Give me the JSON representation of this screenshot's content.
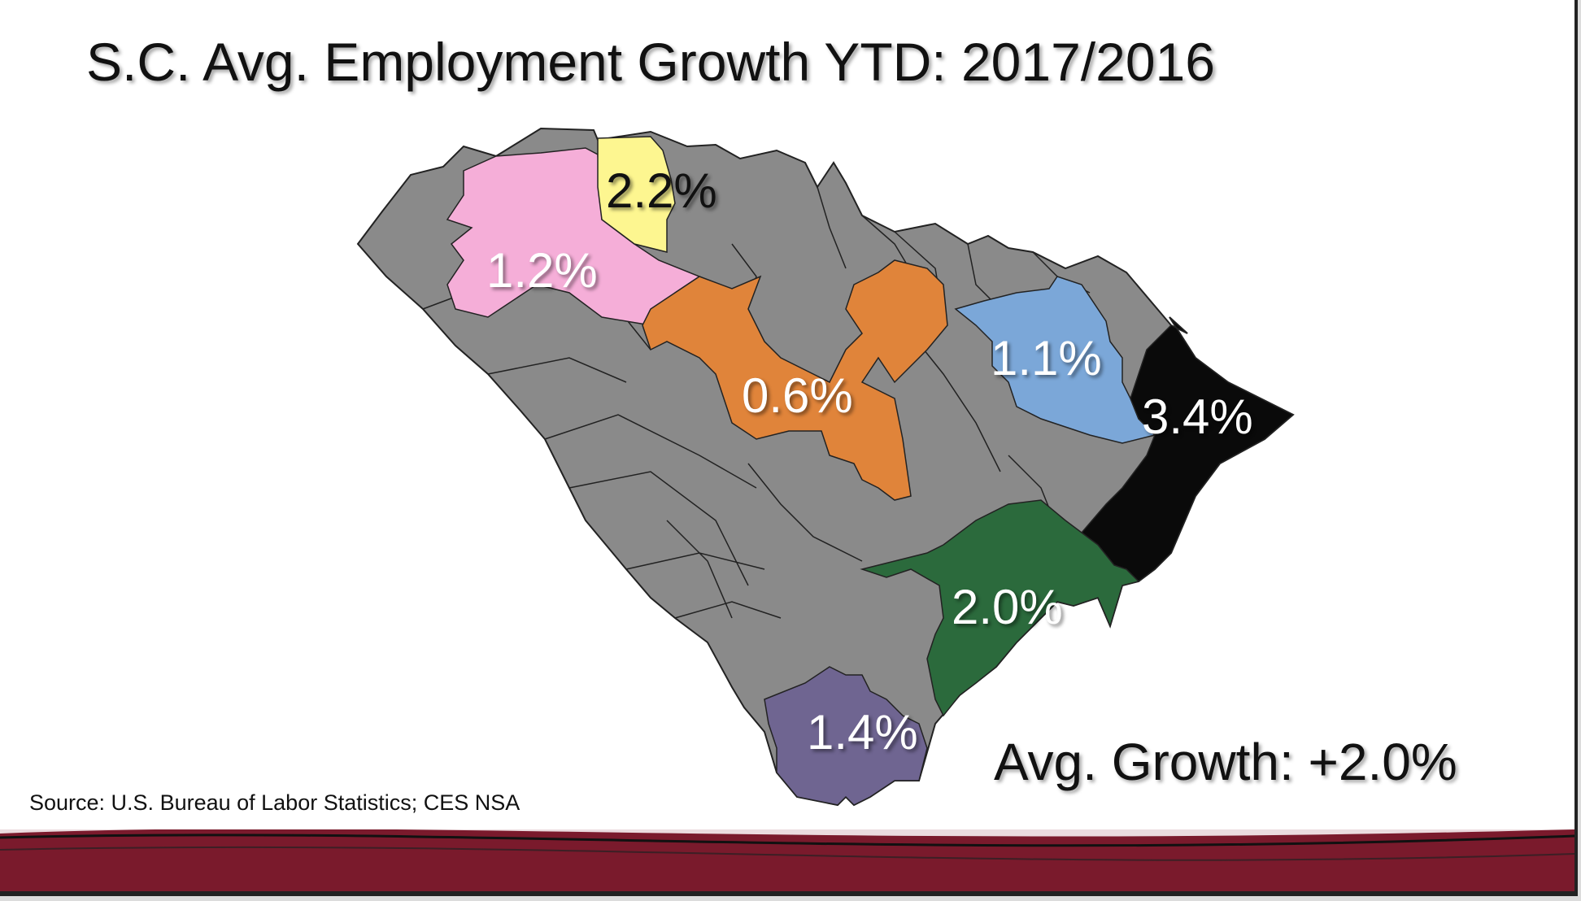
{
  "title": "S.C. Avg. Employment Growth YTD: 2017/2016",
  "regions": [
    {
      "id": "upstate-west",
      "label": "1.2%",
      "value": 1.2,
      "color": "#f5aed8",
      "text_color": "#ffffff"
    },
    {
      "id": "upstate-north",
      "label": "2.2%",
      "value": 2.2,
      "color": "#fdf690",
      "text_color": "#111111"
    },
    {
      "id": "midlands",
      "label": "0.6%",
      "value": 0.6,
      "color": "#e0843a",
      "text_color": "#ffffff"
    },
    {
      "id": "pee-dee",
      "label": "1.1%",
      "value": 1.1,
      "color": "#7ba7d8",
      "text_color": "#ffffff"
    },
    {
      "id": "grand-strand",
      "label": "3.4%",
      "value": 3.4,
      "color": "#0a0a0a",
      "text_color": "#ffffff"
    },
    {
      "id": "lowcountry-charleston",
      "label": "2.0%",
      "value": 2.0,
      "color": "#2b6a3c",
      "text_color": "#ffffff"
    },
    {
      "id": "lowcountry-south",
      "label": "1.4%",
      "value": 1.4,
      "color": "#6f6591",
      "text_color": "#ffffff"
    }
  ],
  "base_color": "#8a8a8a",
  "avg_growth": "Avg. Growth: +2.0%",
  "source": "Source: U.S. Bureau of Labor Statistics; CES NSA",
  "footer_color": "#7a1a2c"
}
